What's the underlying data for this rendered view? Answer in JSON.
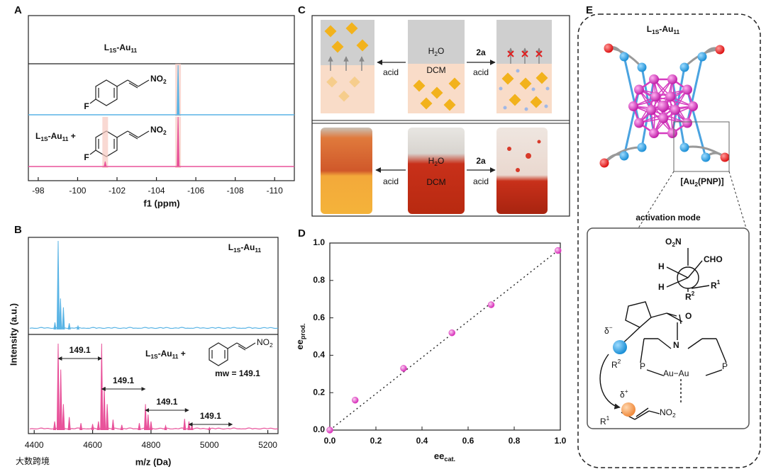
{
  "panel_letters": [
    "A",
    "B",
    "C",
    "D",
    "E"
  ],
  "chart_data": [
    {
      "type": "nmr",
      "title": [
        "L",
        "1S",
        "-Au",
        "11"
      ],
      "xlabel": "f1 (ppm)",
      "xlim": [
        -97.5,
        -111
      ],
      "xticks": [
        -98,
        -100,
        -102,
        -104,
        -106,
        -108,
        -110
      ],
      "series": [
        {
          "color": "#5ab4e5",
          "compound": {
            "substituent": "F",
            "group": [
              "NO",
              "2"
            ]
          },
          "peaks": [
            {
              "x": -105.1,
              "intensity": 1
            }
          ]
        },
        {
          "color": "#e8529a",
          "label": [
            "L",
            "1S",
            "-Au",
            "11",
            " +"
          ],
          "compound": {
            "substituent": "F",
            "group": [
              "NO",
              "2"
            ]
          },
          "peaks": [
            {
              "x": -105.1,
              "intensity": 1
            },
            {
              "x": -101.4,
              "intensity": 0.1
            }
          ]
        }
      ]
    },
    {
      "type": "ms",
      "xlabel": "m/z (Da)",
      "ylabel": "Intensity (a.u.)",
      "xlim": [
        4380,
        5235
      ],
      "xticks": [
        4400,
        4600,
        4800,
        5000,
        5200
      ],
      "series": [
        {
          "color": "#5ab4e5",
          "label": [
            "L",
            "1S",
            "-Au",
            "11"
          ],
          "peaks": [
            {
              "x": 4471,
              "intensity": 0.08
            },
            {
              "x": 4482,
              "intensity": 1
            },
            {
              "x": 4490,
              "intensity": 0.35
            },
            {
              "x": 4500,
              "intensity": 0.25
            },
            {
              "x": 4520,
              "intensity": 0.07
            },
            {
              "x": 4550,
              "intensity": 0.04
            }
          ]
        },
        {
          "color": "#e8529a",
          "label": [
            "L",
            "1S",
            "-Au",
            "11",
            " +"
          ],
          "compound": {
            "group": [
              "NO",
              "2"
            ],
            "note": "mw = 149.1"
          },
          "peaks": [
            {
              "x": 4470,
              "intensity": 0.1
            },
            {
              "x": 4482,
              "intensity": 1
            },
            {
              "x": 4491,
              "intensity": 0.7
            },
            {
              "x": 4500,
              "intensity": 0.3
            },
            {
              "x": 4520,
              "intensity": 0.15
            },
            {
              "x": 4560,
              "intensity": 0.08
            },
            {
              "x": 4600,
              "intensity": 0.07
            },
            {
              "x": 4620,
              "intensity": 0.1
            },
            {
              "x": 4631,
              "intensity": 1
            },
            {
              "x": 4640,
              "intensity": 0.5
            },
            {
              "x": 4650,
              "intensity": 0.3
            },
            {
              "x": 4670,
              "intensity": 0.12
            },
            {
              "x": 4700,
              "intensity": 0.06
            },
            {
              "x": 4760,
              "intensity": 0.08
            },
            {
              "x": 4781,
              "intensity": 0.3
            },
            {
              "x": 4790,
              "intensity": 0.18
            },
            {
              "x": 4800,
              "intensity": 0.1
            },
            {
              "x": 4850,
              "intensity": 0.05
            },
            {
              "x": 4915,
              "intensity": 0.13
            },
            {
              "x": 4930,
              "intensity": 0.1
            },
            {
              "x": 4940,
              "intensity": 0.06
            },
            {
              "x": 5000,
              "intensity": 0.03
            }
          ],
          "spacings": [
            {
              "from": 4482,
              "delta": 149.1
            },
            {
              "from": 4631.1,
              "delta": 149.1
            },
            {
              "from": 4780.2,
              "delta": 149.1
            },
            {
              "from": 4929.3,
              "delta": 149.1
            }
          ]
        }
      ]
    },
    {
      "type": "scatter",
      "xlabel": [
        "ee",
        "cat."
      ],
      "ylabel": [
        "ee",
        "prod."
      ],
      "color": "#e040c0",
      "x": [
        0,
        0.11,
        0.32,
        0.53,
        0.7,
        0.99
      ],
      "y": [
        0,
        0.16,
        0.33,
        0.52,
        0.67,
        0.96
      ],
      "xlim": [
        0,
        1
      ],
      "ylim": [
        0,
        1
      ],
      "xticks": [
        {
          "value": 0,
          "label": "0.0"
        },
        0.2,
        0.4,
        0.6,
        0.8,
        {
          "value": 1,
          "label": "1.0"
        }
      ],
      "yticks": [
        {
          "value": 0,
          "label": "0.0"
        },
        0.2,
        0.4,
        0.6,
        0.8,
        {
          "value": 1,
          "label": "1.0"
        }
      ],
      "trend": {
        "x": [
          0,
          1
        ],
        "y": [
          0,
          0.97
        ]
      }
    }
  ],
  "panel_C": {
    "rows": [
      {
        "upper_phase": [
          "H",
          "2",
          "O"
        ],
        "lower_phase": "DCM",
        "left_arrow": "acid",
        "right_reagent": "2a",
        "right_condition": "acid"
      },
      {
        "upper_phase": [
          "H",
          "2",
          "O"
        ],
        "lower_phase": "DCM",
        "left_arrow": "acid",
        "right_reagent": "2a",
        "right_condition": "acid"
      }
    ]
  },
  "panel_E": {
    "title": [
      "L",
      "1S",
      "-Au",
      "11"
    ],
    "inset_label": [
      "[Au",
      "2",
      "(PNP)]"
    ],
    "activation_title": "activation mode",
    "labels": [
      [
        "O",
        "2",
        "N"
      ],
      "CHO",
      "H",
      "H",
      [
        "R",
        "2"
      ],
      [
        "R",
        "1"
      ],
      "O",
      "N",
      [
        "δ",
        "−"
      ],
      [
        "R",
        "2"
      ],
      "P",
      "Au−Au",
      "P",
      [
        "δ",
        "+"
      ],
      [
        "R",
        "1"
      ],
      [
        "NO",
        "2"
      ]
    ]
  },
  "watermark": "大数跨境"
}
